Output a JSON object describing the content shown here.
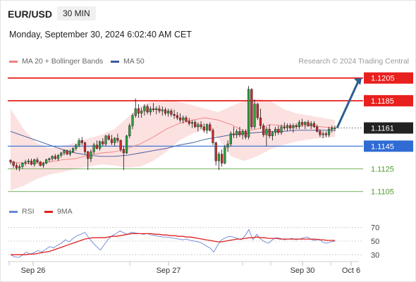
{
  "header": {
    "pair": "EUR/USD",
    "timeframe": "30 MIN",
    "timestamp": "Monday, September 30, 2024 6:02:40 AM CET",
    "credit": "Research © 2024 Trading Central"
  },
  "legend_main": [
    {
      "label": "MA 20 + Bollinger Bands",
      "color": "#f08080"
    },
    {
      "label": "MA 50",
      "color": "#3c5a9a"
    }
  ],
  "legend_rsi": [
    {
      "label": "RSI",
      "color": "#6b86d6"
    },
    {
      "label": "9MA",
      "color": "#e02020"
    }
  ],
  "chart_data": [
    {
      "type": "candlestick",
      "title": "EUR/USD 30 MIN",
      "x_ticks": [
        "Sep 26",
        "Sep 27",
        "Sep 30",
        "Oct 6"
      ],
      "price_levels": [
        {
          "value": "1.1205",
          "kind": "resistance",
          "color": "#e8201e"
        },
        {
          "value": "1.1185",
          "kind": "resistance",
          "color": "#e8201e"
        },
        {
          "value": "1.1161",
          "kind": "last price",
          "color": "#222222"
        },
        {
          "value": "1.1145",
          "kind": "pivot",
          "color": "#2f6bd3"
        },
        {
          "value": "1.1125",
          "kind": "support",
          "color": "#4e9a2e"
        },
        {
          "value": "1.1105",
          "kind": "support",
          "color": "#4e9a2e"
        }
      ],
      "ylim": [
        1.1098,
        1.1211
      ],
      "candle_count": 110,
      "candles_ohlc": [
        [
          1.11325,
          1.11335,
          1.1129,
          1.1131
        ],
        [
          1.1131,
          1.1132,
          1.1126,
          1.1128
        ],
        [
          1.1128,
          1.113,
          1.1124,
          1.1126
        ],
        [
          1.1126,
          1.1129,
          1.1123,
          1.1127
        ],
        [
          1.1127,
          1.1131,
          1.1125,
          1.113
        ],
        [
          1.113,
          1.1133,
          1.1128,
          1.1131
        ],
        [
          1.1131,
          1.1134,
          1.1129,
          1.1132
        ],
        [
          1.1132,
          1.1134,
          1.1128,
          1.1129
        ],
        [
          1.1129,
          1.1134,
          1.1127,
          1.1133
        ],
        [
          1.1133,
          1.1135,
          1.113,
          1.1131
        ],
        [
          1.1131,
          1.1132,
          1.1127,
          1.1128
        ],
        [
          1.1128,
          1.1131,
          1.1126,
          1.113
        ],
        [
          1.113,
          1.1134,
          1.1129,
          1.1133
        ],
        [
          1.1133,
          1.1135,
          1.1131,
          1.1134
        ],
        [
          1.1134,
          1.1137,
          1.1132,
          1.1136
        ],
        [
          1.1136,
          1.1138,
          1.1133,
          1.1134
        ],
        [
          1.1134,
          1.1138,
          1.1132,
          1.1137
        ],
        [
          1.1137,
          1.114,
          1.1135,
          1.1139
        ],
        [
          1.1139,
          1.1142,
          1.1137,
          1.1141
        ],
        [
          1.1141,
          1.1142,
          1.1137,
          1.1138
        ],
        [
          1.1138,
          1.1142,
          1.1136,
          1.114
        ],
        [
          1.114,
          1.1144,
          1.1139,
          1.1143
        ],
        [
          1.1143,
          1.1147,
          1.1141,
          1.1146
        ],
        [
          1.1146,
          1.1152,
          1.1144,
          1.115
        ],
        [
          1.115,
          1.1153,
          1.1146,
          1.1148
        ],
        [
          1.1148,
          1.1149,
          1.1138,
          1.114
        ],
        [
          1.114,
          1.1141,
          1.1124,
          1.1134
        ],
        [
          1.1134,
          1.1142,
          1.1131,
          1.114
        ],
        [
          1.114,
          1.1148,
          1.1138,
          1.1146
        ],
        [
          1.1146,
          1.115,
          1.1142,
          1.1143
        ],
        [
          1.1143,
          1.115,
          1.1141,
          1.1149
        ],
        [
          1.1149,
          1.1152,
          1.1145,
          1.1147
        ],
        [
          1.1147,
          1.1155,
          1.1145,
          1.1154
        ],
        [
          1.1154,
          1.1156,
          1.115,
          1.1151
        ],
        [
          1.1151,
          1.1155,
          1.1146,
          1.1148
        ],
        [
          1.1148,
          1.1153,
          1.1145,
          1.1152
        ],
        [
          1.1152,
          1.1156,
          1.1148,
          1.115
        ],
        [
          1.115,
          1.1151,
          1.114,
          1.1142
        ],
        [
          1.1142,
          1.1145,
          1.1124,
          1.1139
        ],
        [
          1.1139,
          1.1155,
          1.1138,
          1.1154
        ],
        [
          1.1154,
          1.1165,
          1.1152,
          1.1163
        ],
        [
          1.1163,
          1.1174,
          1.116,
          1.1172
        ],
        [
          1.1172,
          1.1187,
          1.117,
          1.1178
        ],
        [
          1.1178,
          1.1182,
          1.117,
          1.1174
        ],
        [
          1.1174,
          1.1179,
          1.117,
          1.1176
        ],
        [
          1.1176,
          1.1182,
          1.1172,
          1.118
        ],
        [
          1.118,
          1.1182,
          1.1173,
          1.1175
        ],
        [
          1.1175,
          1.118,
          1.1172,
          1.1178
        ],
        [
          1.1178,
          1.1183,
          1.1175,
          1.1177
        ],
        [
          1.1177,
          1.118,
          1.1173,
          1.1178
        ],
        [
          1.1178,
          1.1181,
          1.1174,
          1.1176
        ],
        [
          1.1176,
          1.118,
          1.1172,
          1.1177
        ],
        [
          1.1177,
          1.1179,
          1.1172,
          1.1174
        ],
        [
          1.1174,
          1.1178,
          1.1171,
          1.1176
        ],
        [
          1.1176,
          1.1178,
          1.1171,
          1.1173
        ],
        [
          1.1173,
          1.1177,
          1.1169,
          1.1172
        ],
        [
          1.1172,
          1.1175,
          1.1168,
          1.117
        ],
        [
          1.117,
          1.1174,
          1.1166,
          1.1168
        ],
        [
          1.1168,
          1.1172,
          1.1165,
          1.117
        ],
        [
          1.117,
          1.1172,
          1.1166,
          1.1167
        ],
        [
          1.1167,
          1.117,
          1.1163,
          1.1165
        ],
        [
          1.1165,
          1.1168,
          1.1161,
          1.1166
        ],
        [
          1.1166,
          1.1168,
          1.1161,
          1.1162
        ],
        [
          1.1162,
          1.1166,
          1.1158,
          1.1164
        ],
        [
          1.1164,
          1.1167,
          1.116,
          1.1162
        ],
        [
          1.1162,
          1.1165,
          1.1157,
          1.1159
        ],
        [
          1.1159,
          1.1165,
          1.1156,
          1.1164
        ],
        [
          1.1164,
          1.1166,
          1.1158,
          1.1159
        ],
        [
          1.1159,
          1.1161,
          1.1146,
          1.1148
        ],
        [
          1.1148,
          1.1149,
          1.1128,
          1.1132
        ],
        [
          1.1132,
          1.114,
          1.1124,
          1.1138
        ],
        [
          1.1138,
          1.1142,
          1.1127,
          1.113
        ],
        [
          1.113,
          1.1146,
          1.1129,
          1.1144
        ],
        [
          1.1144,
          1.115,
          1.114,
          1.1147
        ],
        [
          1.1147,
          1.1158,
          1.1145,
          1.1156
        ],
        [
          1.1156,
          1.1162,
          1.1152,
          1.1155
        ],
        [
          1.1155,
          1.116,
          1.1152,
          1.1158
        ],
        [
          1.1158,
          1.1162,
          1.1153,
          1.1155
        ],
        [
          1.1155,
          1.116,
          1.1151,
          1.1158
        ],
        [
          1.1158,
          1.116,
          1.1151,
          1.1153
        ],
        [
          1.1153,
          1.1198,
          1.1151,
          1.1195
        ],
        [
          1.1195,
          1.1196,
          1.116,
          1.1162
        ],
        [
          1.1162,
          1.1186,
          1.116,
          1.1182
        ],
        [
          1.1182,
          1.1183,
          1.1168,
          1.117
        ],
        [
          1.117,
          1.1178,
          1.116,
          1.1163
        ],
        [
          1.1163,
          1.1165,
          1.1153,
          1.1155
        ],
        [
          1.1155,
          1.1162,
          1.1145,
          1.116
        ],
        [
          1.116,
          1.1164,
          1.1152,
          1.1154
        ],
        [
          1.1154,
          1.1158,
          1.115,
          1.1157
        ],
        [
          1.1157,
          1.1162,
          1.1154,
          1.116
        ],
        [
          1.116,
          1.1163,
          1.1155,
          1.1157
        ],
        [
          1.1157,
          1.1164,
          1.1155,
          1.1162
        ],
        [
          1.1162,
          1.1166,
          1.1159,
          1.1161
        ],
        [
          1.1161,
          1.1165,
          1.1158,
          1.1163
        ],
        [
          1.1163,
          1.1165,
          1.1159,
          1.1161
        ],
        [
          1.1161,
          1.1165,
          1.1157,
          1.1163
        ],
        [
          1.1163,
          1.1165,
          1.116,
          1.1162
        ],
        [
          1.1162,
          1.1168,
          1.116,
          1.1166
        ],
        [
          1.1166,
          1.1169,
          1.1162,
          1.1164
        ],
        [
          1.1164,
          1.1167,
          1.116,
          1.1166
        ],
        [
          1.1166,
          1.1168,
          1.1162,
          1.1163
        ],
        [
          1.1163,
          1.1167,
          1.116,
          1.1165
        ],
        [
          1.1165,
          1.1167,
          1.1161,
          1.1162
        ],
        [
          1.1162,
          1.1164,
          1.1157,
          1.1158
        ],
        [
          1.1158,
          1.116,
          1.1153,
          1.1155
        ],
        [
          1.1155,
          1.1158,
          1.1152,
          1.1156
        ],
        [
          1.1156,
          1.1158,
          1.1153,
          1.1155
        ],
        [
          1.1155,
          1.1162,
          1.1153,
          1.116
        ],
        [
          1.116,
          1.1163,
          1.1157,
          1.1161
        ],
        [
          1.1161,
          1.1163,
          1.1158,
          1.1161
        ]
      ],
      "projection": {
        "from": 1.1161,
        "to": 1.1205
      },
      "ma50": [
        1.1158,
        1.1154,
        1.115,
        1.1146,
        1.1142,
        1.1139,
        1.1137,
        1.1136,
        1.1136,
        1.1137,
        1.1139,
        1.1141,
        1.1143,
        1.1146,
        1.1148,
        1.1151,
        1.1153,
        1.1155,
        1.1156,
        1.1157,
        1.1158,
        1.1158,
        1.1159,
        1.1159,
        1.1159,
        1.1159
      ],
      "ma20": [
        1.1131,
        1.113,
        1.113,
        1.1131,
        1.1133,
        1.1134,
        1.1137,
        1.1139,
        1.114,
        1.1143,
        1.1147,
        1.1153,
        1.116,
        1.1165,
        1.1168,
        1.117,
        1.1168,
        1.1164,
        1.1158,
        1.116,
        1.1164,
        1.1163,
        1.1163,
        1.1163,
        1.1162,
        1.1161
      ],
      "bb_upper": [
        1.1178,
        1.116,
        1.1148,
        1.1143,
        1.1145,
        1.1148,
        1.1152,
        1.1155,
        1.116,
        1.117,
        1.118,
        1.1185,
        1.1186,
        1.1184,
        1.1181,
        1.1178,
        1.1175,
        1.118,
        1.1185,
        1.1187,
        1.1185,
        1.1178,
        1.1174,
        1.1172,
        1.117,
        1.1168
      ],
      "bb_lower": [
        1.1106,
        1.111,
        1.1116,
        1.112,
        1.1122,
        1.1125,
        1.1127,
        1.1129,
        1.1128,
        1.1126,
        1.1127,
        1.1132,
        1.114,
        1.115,
        1.1156,
        1.116,
        1.1152,
        1.1136,
        1.1132,
        1.1136,
        1.1142,
        1.1146,
        1.1149,
        1.1151,
        1.1152,
        1.1153
      ]
    },
    {
      "type": "line",
      "title": "RSI",
      "y_ticks": [
        "70",
        "50",
        "30"
      ],
      "ylim": [
        20,
        80
      ],
      "series": [
        {
          "name": "RSI",
          "color": "#6b86d6",
          "values": [
            30,
            27,
            26,
            29,
            34,
            31,
            33,
            36,
            34,
            38,
            42,
            40,
            44,
            47,
            52,
            49,
            54,
            58,
            60,
            63,
            55,
            48,
            42,
            37,
            45,
            53,
            58,
            61,
            65,
            62,
            60,
            63,
            62,
            61,
            60,
            61,
            59,
            58,
            57,
            56,
            56,
            55,
            54,
            53,
            52,
            53,
            51,
            50,
            49,
            47,
            43,
            40,
            34,
            44,
            52,
            55,
            57,
            56,
            54,
            52,
            58,
            67,
            52,
            60,
            53,
            49,
            47,
            52,
            55,
            54,
            52,
            53,
            54,
            52,
            53,
            55,
            56,
            52,
            51,
            53,
            48,
            47,
            49,
            50
          ]
        },
        {
          "name": "9MA",
          "color": "#e02020",
          "values": [
            30,
            30,
            30,
            30,
            30,
            31,
            31,
            32,
            33,
            34,
            35,
            37,
            39,
            41,
            43,
            45,
            47,
            49,
            51,
            53,
            54,
            55,
            55,
            55,
            55,
            56,
            57,
            57,
            58,
            59,
            60,
            61,
            61,
            61,
            61,
            61,
            61,
            60,
            60,
            59,
            59,
            58,
            58,
            57,
            57,
            56,
            56,
            55,
            54,
            53,
            52,
            51,
            50,
            49,
            49,
            50,
            51,
            52,
            53,
            53,
            54,
            55,
            55,
            56,
            55,
            55,
            54,
            54,
            54,
            53,
            53,
            53,
            53,
            53,
            53,
            53,
            53,
            53,
            53,
            52,
            52,
            51,
            51,
            51
          ]
        }
      ]
    }
  ]
}
